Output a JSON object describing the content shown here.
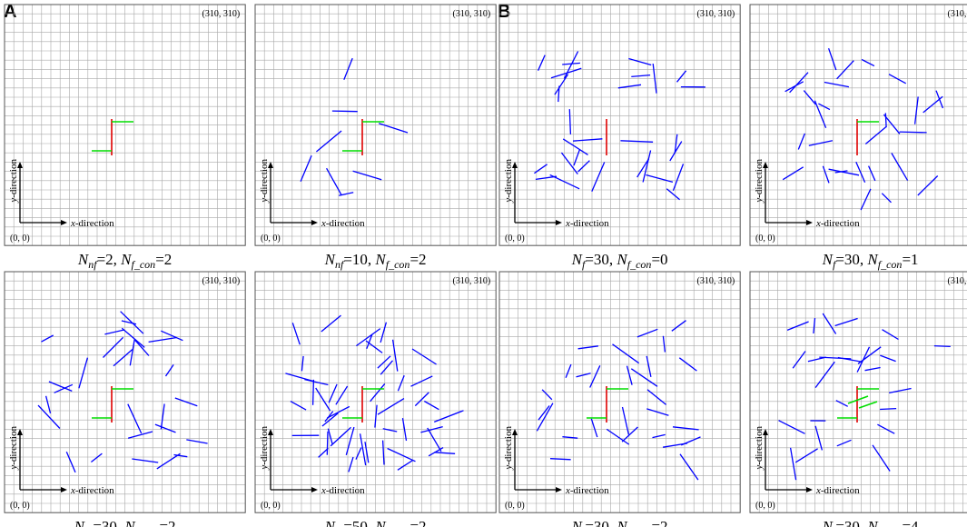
{
  "panel_labels": {
    "a": "A",
    "b": "B"
  },
  "corner_labels": {
    "top_right": "(310, 310)",
    "origin": "(0, 0)"
  },
  "axis_labels": {
    "x_prefix": "x",
    "x_suffix": "-direction",
    "y_prefix": "y",
    "y_suffix": "-direction"
  },
  "colors": {
    "grid": "#a8a8a8",
    "border": "#555555",
    "hydraulic_fracture": "#e00000",
    "connected_branch": "#00dd00",
    "natural_fracture": "#0000ff",
    "axis": "#000000"
  },
  "panels": [
    {
      "caption": {
        "main1": "N",
        "sub1": "nf",
        "eq1": "=2, ",
        "main2": "N",
        "sub2": "f_con",
        "eq2": "=2"
      },
      "natural_fractures": 0,
      "green_branches": 2
    },
    {
      "caption": {
        "main1": "N",
        "sub1": "nf",
        "eq1": "=10, ",
        "main2": "N",
        "sub2": "f_con",
        "eq2": "=2"
      },
      "natural_fractures": 8,
      "green_branches": 2
    },
    {
      "caption": {
        "main1": "N",
        "sub1": "f",
        "eq1": "=30, ",
        "main2": "N",
        "sub2": "f_con",
        "eq2": "=0"
      },
      "natural_fractures": 30,
      "green_branches": 0
    },
    {
      "caption": {
        "main1": "N",
        "sub1": "f",
        "eq1": "=30, ",
        "main2": "N",
        "sub2": "f_con",
        "eq2": "=1"
      },
      "natural_fractures": 29,
      "green_branches": 1
    },
    {
      "caption": {
        "main1": "N",
        "sub1": "nf",
        "eq1": "=30, ",
        "main2": "N",
        "sub2": "f_con",
        "eq2": "=2"
      },
      "natural_fractures": 28,
      "green_branches": 2
    },
    {
      "caption": {
        "main1": "N",
        "sub1": "nf",
        "eq1": "=50, ",
        "main2": "N",
        "sub2": "f_con",
        "eq2": "=2"
      },
      "natural_fractures": 48,
      "green_branches": 2
    },
    {
      "caption": {
        "main1": "N",
        "sub1": "f",
        "eq1": "=30, ",
        "main2": "N",
        "sub2": "f_con",
        "eq2": "=2"
      },
      "natural_fractures": 28,
      "green_branches": 2
    },
    {
      "caption": {
        "main1": "N",
        "sub1": "f",
        "eq1": "=30, ",
        "main2": "N",
        "sub2": "f_con",
        "eq2": "=4"
      },
      "natural_fractures": 26,
      "green_branches": 4
    }
  ]
}
